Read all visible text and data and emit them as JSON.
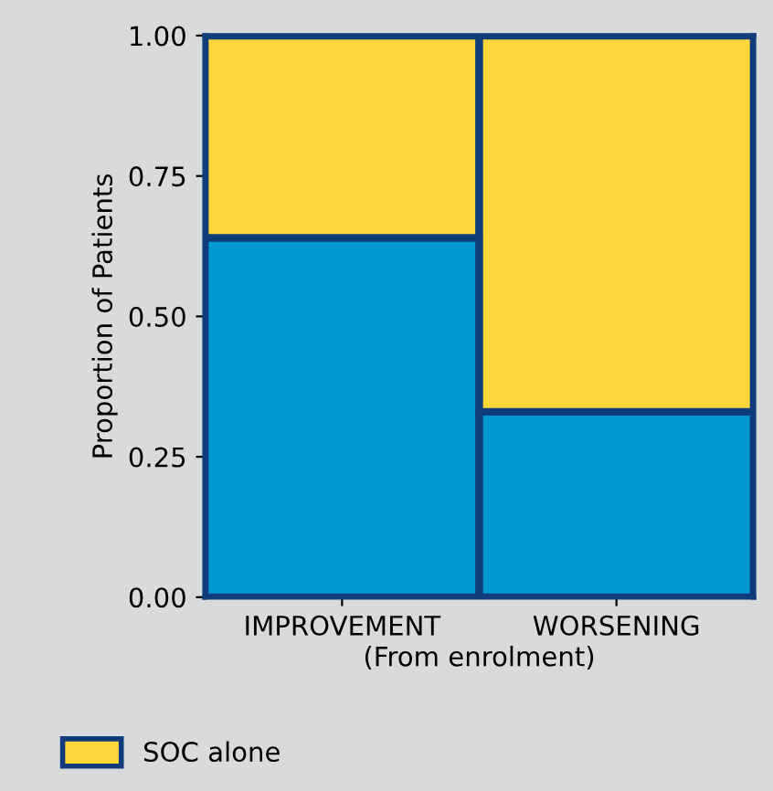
{
  "chart_data": {
    "type": "bar",
    "stacked": true,
    "ylabel": "Proportion of Patients",
    "xlabel": "(From enrolment)",
    "categories": [
      "IMPROVEMENT",
      "WORSENING"
    ],
    "series": [
      {
        "color": "#0099d4",
        "values": [
          0.64,
          0.33
        ]
      },
      {
        "name": "SOC alone",
        "color": "#fdd63a",
        "values": [
          0.36,
          0.67
        ]
      }
    ],
    "ylim": [
      0,
      1
    ],
    "yticks": [
      {
        "value": 0,
        "label": "0.00"
      },
      {
        "value": 0.25,
        "label": "0.25"
      },
      {
        "value": 0.5,
        "label": "0.50"
      },
      {
        "value": 0.75,
        "label": "0.75"
      },
      {
        "value": 1,
        "label": "1.00"
      }
    ],
    "grid": false,
    "legend": "bottom"
  }
}
